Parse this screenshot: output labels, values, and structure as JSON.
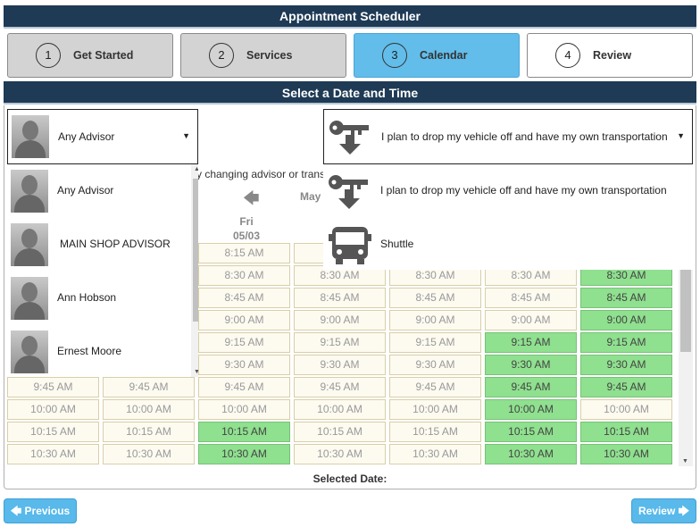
{
  "header": {
    "title": "Appointment Scheduler"
  },
  "steps": [
    {
      "num": "1",
      "label": "Get Started"
    },
    {
      "num": "2",
      "label": "Services"
    },
    {
      "num": "3",
      "label": "Calendar"
    },
    {
      "num": "4",
      "label": "Review"
    }
  ],
  "section": {
    "title": "Select a Date and Time"
  },
  "advisor": {
    "selected": "Any Advisor",
    "options": [
      "Any Advisor",
      "MAIN SHOP ADVISOR",
      "Ann Hobson",
      "Ernest Moore"
    ]
  },
  "transport": {
    "selected": "I plan to drop my vehicle off and have my own transportation",
    "options": [
      "I plan to drop my vehicle off and have my own transportation",
      "Shuttle"
    ]
  },
  "info_text": "y changing advisor or trans",
  "calendar": {
    "month": "May",
    "day": {
      "name": "Fri",
      "date": "05/03"
    }
  },
  "slots": {
    "col1": [
      "",
      "",
      "",
      "",
      "",
      "",
      "9:45 AM",
      "10:00 AM",
      "10:15 AM",
      "10:30 AM"
    ],
    "col2": [
      "",
      "",
      "",
      "",
      "",
      "",
      "9:45 AM",
      "10:00 AM",
      "10:15 AM",
      "10:30 AM"
    ],
    "col3": [
      "8:15 AM",
      "8:30 AM",
      "8:45 AM",
      "9:00 AM",
      "9:15 AM",
      "9:30 AM",
      "9:45 AM",
      "10:00 AM",
      "10:15 AM",
      "10:30 AM"
    ],
    "col4": [
      "8",
      "8:30 AM",
      "8:45 AM",
      "9:00 AM",
      "9:15 AM",
      "9:30 AM",
      "9:45 AM",
      "10:00 AM",
      "10:15 AM",
      "10:30 AM"
    ],
    "col5": [
      "",
      "8:30 AM",
      "8:45 AM",
      "9:00 AM",
      "9:15 AM",
      "9:30 AM",
      "9:45 AM",
      "10:00 AM",
      "10:15 AM",
      "10:30 AM"
    ],
    "col6": [
      "",
      "8:30 AM",
      "8:45 AM",
      "9:00 AM",
      "9:15 AM",
      "9:30 AM",
      "9:45 AM",
      "10:00 AM",
      "10:15 AM",
      "10:30 AM"
    ],
    "col7": [
      "",
      "8:30 AM",
      "8:45 AM",
      "9:00 AM",
      "9:15 AM",
      "9:30 AM",
      "9:45 AM",
      "10:00 AM",
      "10:15 AM",
      "10:30 AM"
    ]
  },
  "selected_date_label": "Selected Date:",
  "buttons": {
    "previous": "Previous",
    "review": "Review"
  },
  "icons": {
    "prev": "arrow-left-icon",
    "next": "arrow-right-icon"
  },
  "colors": {
    "header_bg": "#1e3a55",
    "active_step": "#62bdea",
    "available_slot": "#8fe08f",
    "button": "#58b9ea"
  }
}
